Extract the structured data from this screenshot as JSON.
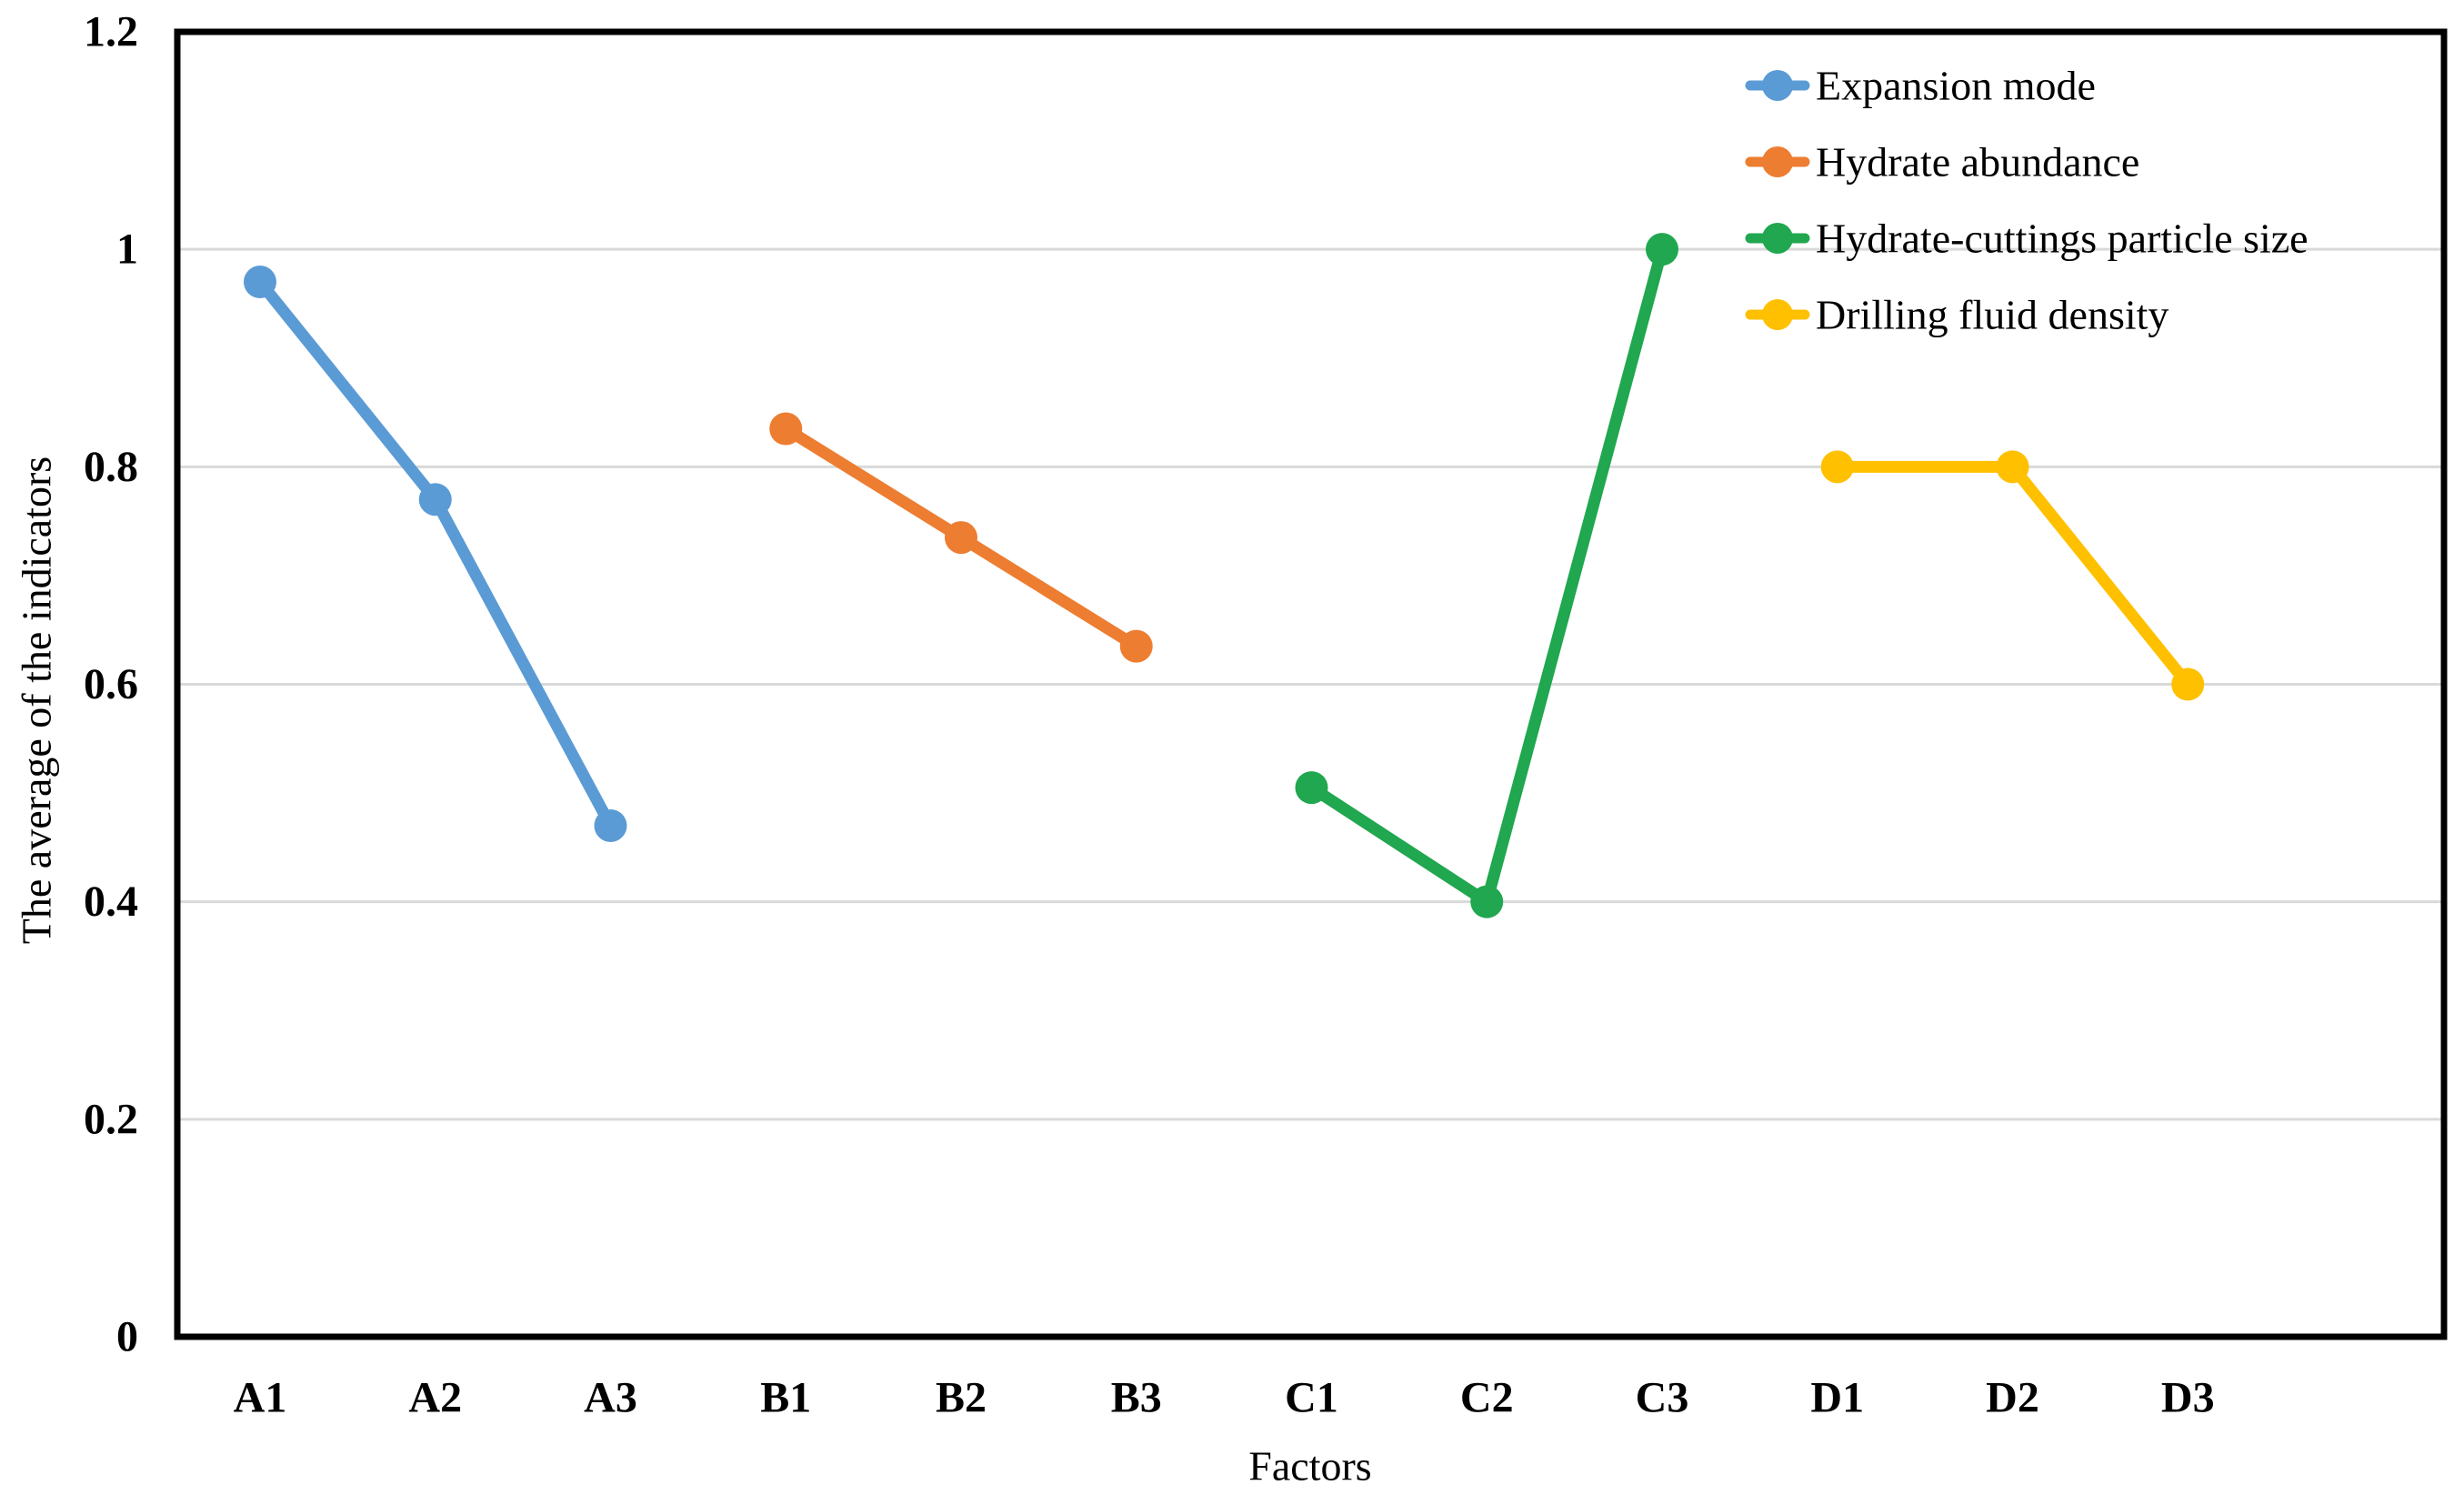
{
  "chart_data": {
    "type": "line",
    "title": "",
    "xlabel": "Factors",
    "ylabel": "The average of the indicators",
    "ylim": [
      0,
      1.2
    ],
    "ytick_interval": 0.2,
    "yticks": [
      "0",
      "0.2",
      "0.4",
      "0.6",
      "0.8",
      "1",
      "1.2"
    ],
    "categories": [
      "A1",
      "A2",
      "A3",
      "B1",
      "B2",
      "B3",
      "C1",
      "C2",
      "C3",
      "D1",
      "D2",
      "D3"
    ],
    "grid": "horizontal",
    "gridline_color": "#D9D9D9",
    "axis_color": "#000000",
    "marker": "circle",
    "legend_position": "top-right-inside",
    "series": [
      {
        "name": "Expansion mode",
        "color": "#5B9BD5",
        "categories": [
          "A1",
          "A2",
          "A3"
        ],
        "values": [
          0.97,
          0.77,
          0.47
        ]
      },
      {
        "name": "Hydrate abundance",
        "color": "#ED7D31",
        "categories": [
          "B1",
          "B2",
          "B3"
        ],
        "values": [
          0.835,
          0.735,
          0.635
        ]
      },
      {
        "name": "Hydrate-cuttings particle size",
        "color": "#20A74F",
        "categories": [
          "C1",
          "C2",
          "C3"
        ],
        "values": [
          0.505,
          0.4,
          1.0
        ]
      },
      {
        "name": "Drilling fluid density",
        "color": "#FFC000",
        "categories": [
          "D1",
          "D2",
          "D3"
        ],
        "values": [
          0.8,
          0.8,
          0.6
        ]
      }
    ]
  }
}
